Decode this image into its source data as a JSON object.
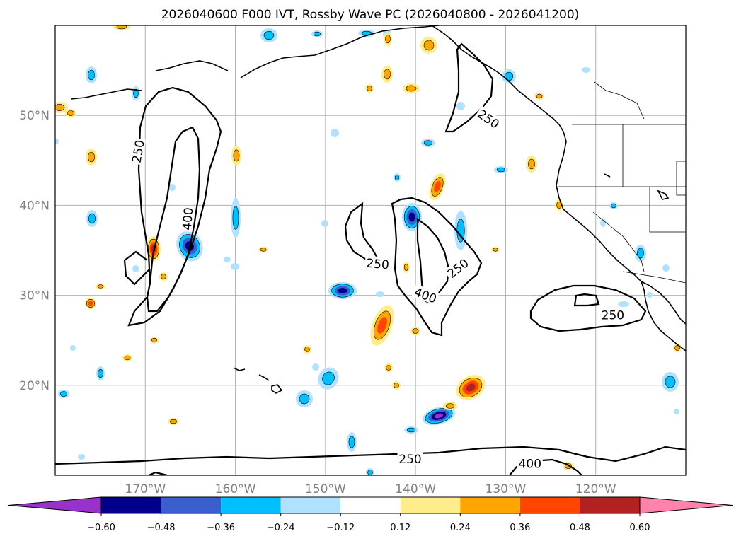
{
  "title": "2026040600 F000 IVT, Rossby Wave PC (2026040800 - 2026041200)",
  "map": {
    "lat_range": [
      10,
      60
    ],
    "lon_range": [
      -180,
      -110
    ],
    "lat_labels": [
      "50°N",
      "40°N",
      "30°N",
      "20°N"
    ],
    "lon_labels": [
      "170°W",
      "160°W",
      "150°W",
      "140°W",
      "130°W",
      "120°W"
    ]
  },
  "ivt_contours": {
    "levels": [
      250,
      400
    ],
    "labels": [
      {
        "text": "250",
        "lon": -170.8,
        "lat": 46.0,
        "rot": 80
      },
      {
        "text": "400",
        "lon": -165.3,
        "lat": 38.5,
        "rot": 85
      },
      {
        "text": "250",
        "lon": -131.9,
        "lat": 49.6,
        "rot": -35
      },
      {
        "text": "250",
        "lon": -144.2,
        "lat": 33.5,
        "rot": -5
      },
      {
        "text": "250",
        "lon": -135.3,
        "lat": 33.0,
        "rot": 38
      },
      {
        "text": "400",
        "lon": -138.9,
        "lat": 30.0,
        "rot": -20
      },
      {
        "text": "250",
        "lon": -118.1,
        "lat": 27.8,
        "rot": 0
      },
      {
        "text": "250",
        "lon": -140.6,
        "lat": 11.8,
        "rot": 0
      },
      {
        "text": "400",
        "lon": -127.3,
        "lat": 11.3,
        "rot": 0
      }
    ]
  },
  "colorbar": {
    "tick_labels": [
      "−0.60",
      "−0.48",
      "−0.36",
      "−0.24",
      "−0.12",
      "0.12",
      "0.24",
      "0.36",
      "0.48",
      "0.60"
    ],
    "colors": [
      "#9932CC",
      "#00008B",
      "#3A5FCD",
      "#00BFFF",
      "#B0E2FF",
      "#FFFFFF",
      "#FFEC8B",
      "#FFA500",
      "#FF4500",
      "#B22222",
      "#FF82AB"
    ],
    "label": ""
  }
}
